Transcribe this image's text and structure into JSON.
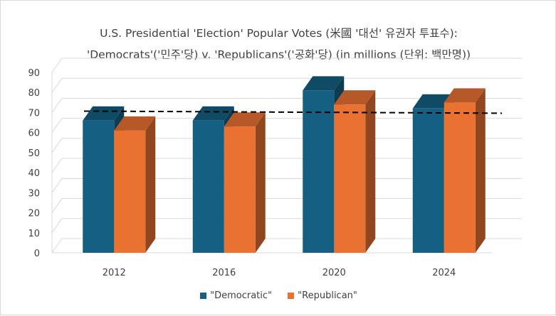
{
  "chart_data": {
    "type": "bar",
    "title_line1": "U.S. Presidential 'Election' Popular Votes (米國 '대선' 유권자 투표수):",
    "title_line2": "'Democrats'('민주'당) v. 'Republicans'('공화'당) (in millions (단위: 백만명))",
    "categories": [
      "2012",
      "2016",
      "2020",
      "2024"
    ],
    "series": [
      {
        "name": "\"Democratic\"",
        "values": [
          66,
          66,
          81,
          72
        ],
        "color": "#156082"
      },
      {
        "name": "\"Republican\"",
        "values": [
          61,
          63,
          74,
          75
        ],
        "color": "#e97132"
      }
    ],
    "y_ticks": [
      "0",
      "10",
      "20",
      "30",
      "40",
      "50",
      "60",
      "70",
      "80",
      "90"
    ],
    "ylim": [
      0,
      90
    ],
    "reference_line": {
      "value": 70,
      "style": "dashed",
      "color": "#000000"
    },
    "grid": true,
    "legend_position": "bottom",
    "style": "3d-clustered-column"
  }
}
